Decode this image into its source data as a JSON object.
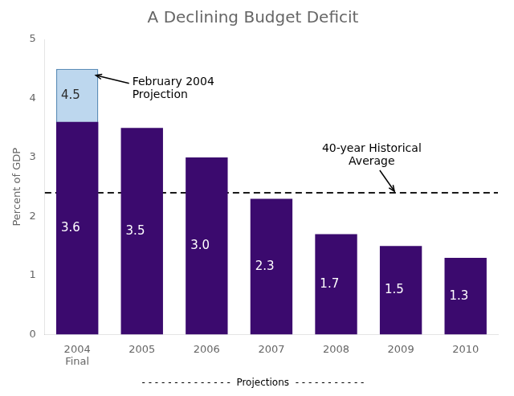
{
  "chart_data": {
    "type": "bar",
    "title": "A Declining Budget Deficit",
    "ylabel": "Percent of GDP",
    "categories": [
      "2004\nFinal",
      "2005",
      "2006",
      "2007",
      "2008",
      "2009",
      "2010"
    ],
    "series": [
      {
        "values": [
          3.6,
          3.5,
          3.0,
          2.3,
          1.7,
          1.5,
          1.3
        ],
        "value_labels": [
          "3.6",
          "3.5",
          "3.0",
          "2.3",
          "1.7",
          "1.5",
          "1.3"
        ],
        "color": "#3B0A6E"
      },
      {
        "values": [
          4.5,
          null,
          null,
          null,
          null,
          null,
          null
        ],
        "color": "#BDD7EE",
        "annotation": "February 2004\nProjection"
      }
    ],
    "reference_line": {
      "value": 2.4,
      "label": "40-year Historical\nAverage",
      "line_style": "dashed",
      "color": "#1a1a1a"
    },
    "footer": "- - - - - - - - - - - - - -  Projections  - - - - - - - - - - -",
    "ylim": [
      0,
      5
    ],
    "yticks": [
      0,
      1,
      2,
      3,
      4,
      5
    ],
    "grid": false,
    "data_labels": true
  }
}
